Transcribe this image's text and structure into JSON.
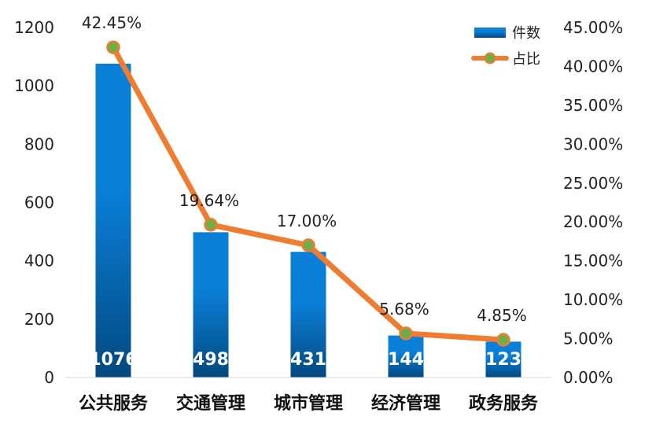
{
  "chart_data": {
    "type": "bar",
    "categories": [
      "公共服务",
      "交通管理",
      "城市管理",
      "经济管理",
      "政务服务"
    ],
    "series": [
      {
        "name": "件数",
        "type": "bar",
        "axis": "left",
        "values": [
          1076,
          498,
          431,
          144,
          123
        ],
        "labels": [
          "1076",
          "498",
          "431",
          "144",
          "123"
        ]
      },
      {
        "name": "占比",
        "type": "line",
        "axis": "right",
        "values": [
          42.45,
          19.64,
          17.0,
          5.68,
          4.85
        ],
        "labels": [
          "42.45%",
          "19.64%",
          "17.00%",
          "5.68%",
          "4.85%"
        ]
      }
    ],
    "y_left": {
      "min": 0,
      "max": 1200,
      "ticks": [
        "0",
        "200",
        "400",
        "600",
        "800",
        "1000",
        "1200"
      ]
    },
    "y_right": {
      "min": 0,
      "max": 45,
      "ticks": [
        "0.00%",
        "5.00%",
        "10.00%",
        "15.00%",
        "20.00%",
        "25.00%",
        "30.00%",
        "35.00%",
        "40.00%",
        "45.00%"
      ]
    },
    "legend": {
      "position": "top-right",
      "items": [
        "件数",
        "占比"
      ]
    },
    "grid": false,
    "colors": {
      "bar_top": "#0a7fd8",
      "bar_bottom": "#03497f",
      "line": "#ee7d31",
      "marker": "#70ad47",
      "text": "#222222",
      "bar_label": "#ffffff"
    }
  }
}
